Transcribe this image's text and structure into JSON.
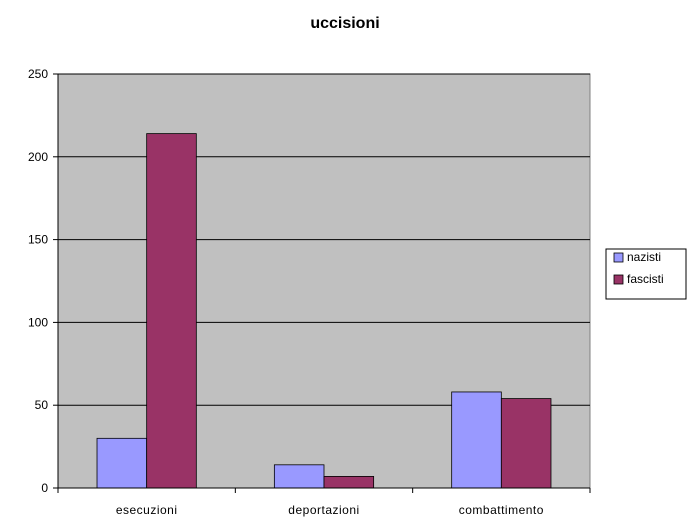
{
  "chart_data": {
    "type": "bar",
    "title": "uccisioni",
    "xlabel": "",
    "ylabel": "",
    "categories": [
      "esecuzioni",
      "deportazioni",
      "combattimento"
    ],
    "series": [
      {
        "name": "nazisti",
        "values": [
          30,
          14,
          58
        ]
      },
      {
        "name": "fascisti",
        "values": [
          214,
          7,
          54
        ]
      }
    ],
    "ylim": [
      0,
      250
    ],
    "yticks": [
      0,
      50,
      100,
      150,
      200,
      250
    ],
    "grid": true,
    "legend": "right",
    "colors": {
      "plot_background": "#c0c0c0",
      "gridline": "#000000",
      "series": [
        "#9999ff",
        "#993366"
      ]
    }
  }
}
